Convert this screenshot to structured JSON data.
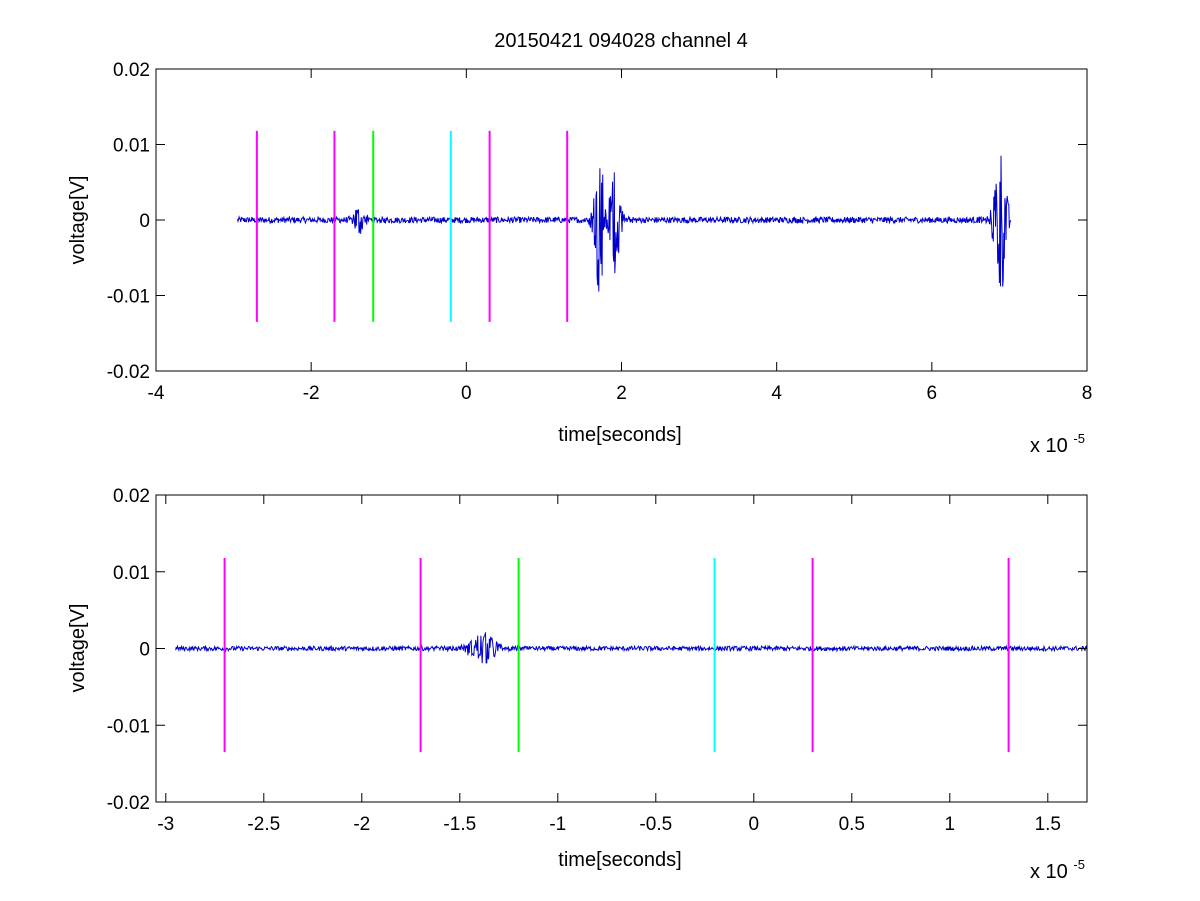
{
  "chart_data": [
    {
      "type": "line",
      "title": "20150421 094028 channel 4",
      "xlabel": "time[seconds]",
      "ylabel": "voltage[V]",
      "x_exponent_label": "x 10",
      "x_exponent": "-5",
      "xlim": [
        -4,
        8
      ],
      "ylim": [
        -0.02,
        0.02
      ],
      "xticks": [
        -4,
        -2,
        0,
        2,
        4,
        6,
        8
      ],
      "xtick_labels": [
        "-4",
        "-2",
        "0",
        "2",
        "4",
        "6",
        "8"
      ],
      "yticks": [
        -0.02,
        -0.01,
        0,
        0.01,
        0.02
      ],
      "ytick_labels": [
        "-0.02",
        "-0.01",
        "0",
        "0.01",
        "0.02"
      ],
      "grid": false,
      "series": [
        {
          "color": "#0000cc",
          "x_range": [
            -2.95,
            7.02
          ],
          "baseline_noise": 0.0004,
          "events": [
            {
              "x": -1.38,
              "amp": 0.0022,
              "width": 0.12
            },
            {
              "x": 1.72,
              "amp": 0.0095,
              "width": 0.12
            },
            {
              "x": 1.92,
              "amp": 0.0075,
              "width": 0.1
            },
            {
              "x": 6.88,
              "amp": 0.011,
              "width": 0.12
            }
          ]
        }
      ],
      "vlines": [
        {
          "x": -2.7,
          "color": "#ff00ff",
          "y": [
            -0.0135,
            0.0118
          ]
        },
        {
          "x": -1.7,
          "color": "#ff00ff",
          "y": [
            -0.0135,
            0.0118
          ]
        },
        {
          "x": -1.2,
          "color": "#00ff00",
          "y": [
            -0.0135,
            0.0118
          ]
        },
        {
          "x": -0.2,
          "color": "#00ffff",
          "y": [
            -0.0135,
            0.0118
          ]
        },
        {
          "x": 0.3,
          "color": "#ff00ff",
          "y": [
            -0.0135,
            0.0118
          ]
        },
        {
          "x": 1.3,
          "color": "#ff00ff",
          "y": [
            -0.0135,
            0.0118
          ]
        }
      ]
    },
    {
      "type": "line",
      "title": "",
      "xlabel": "time[seconds]",
      "ylabel": "voltage[V]",
      "x_exponent_label": "x 10",
      "x_exponent": "-5",
      "xlim": [
        -3.05,
        1.7
      ],
      "ylim": [
        -0.02,
        0.02
      ],
      "xticks": [
        -3,
        -2.5,
        -2,
        -1.5,
        -1,
        -0.5,
        0,
        0.5,
        1,
        1.5
      ],
      "xtick_labels": [
        "-3",
        "-2.5",
        "-2",
        "-1.5",
        "-1",
        "-0.5",
        "0",
        "0.5",
        "1",
        "1.5"
      ],
      "yticks": [
        -0.02,
        -0.01,
        0,
        0.01,
        0.02
      ],
      "ytick_labels": [
        "-0.02",
        "-0.01",
        "0",
        "0.01",
        "0.02"
      ],
      "grid": false,
      "series": [
        {
          "color": "#0000cc",
          "x_range": [
            -2.95,
            1.7
          ],
          "baseline_noise": 0.0003,
          "events": [
            {
              "x": -1.38,
              "amp": 0.0025,
              "width": 0.1
            }
          ]
        }
      ],
      "vlines": [
        {
          "x": -2.7,
          "color": "#ff00ff",
          "y": [
            -0.0135,
            0.0118
          ]
        },
        {
          "x": -1.7,
          "color": "#ff00ff",
          "y": [
            -0.0135,
            0.0118
          ]
        },
        {
          "x": -1.2,
          "color": "#00ff00",
          "y": [
            -0.0135,
            0.0118
          ]
        },
        {
          "x": -0.2,
          "color": "#00ffff",
          "y": [
            -0.0135,
            0.0118
          ]
        },
        {
          "x": 0.3,
          "color": "#ff00ff",
          "y": [
            -0.0135,
            0.0118
          ]
        },
        {
          "x": 1.3,
          "color": "#ff00ff",
          "y": [
            -0.0135,
            0.0118
          ]
        }
      ]
    }
  ]
}
